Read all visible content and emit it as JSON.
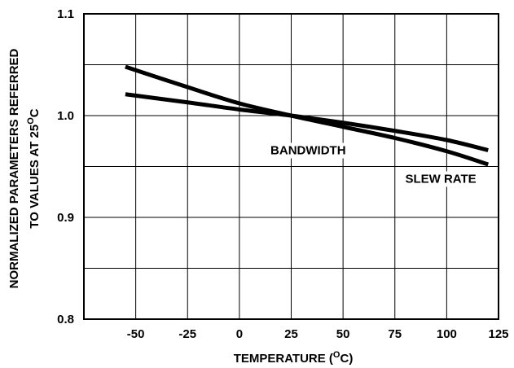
{
  "chart_data": {
    "type": "line",
    "title": "",
    "xlabel": "TEMPERATURE (",
    "xlabel_sup": "O",
    "xlabel_end": "C)",
    "ylabel_line1": "NORMALIZED PARAMETERS REFERRED",
    "ylabel_line2": "TO VALUES AT 25",
    "ylabel_sup": "O",
    "ylabel_end": "C",
    "xlim": [
      -75,
      125
    ],
    "ylim": [
      0.8,
      1.1
    ],
    "x_ticks": [
      "-50",
      "-25",
      "0",
      "25",
      "50",
      "75",
      "100",
      "125"
    ],
    "x_tick_values": [
      -50,
      -25,
      0,
      25,
      50,
      75,
      100,
      125
    ],
    "y_ticks": [
      "0.8",
      "0.9",
      "1.0",
      "1.1"
    ],
    "y_tick_values": [
      0.8,
      0.9,
      1.0,
      1.1
    ],
    "y_grid_values": [
      0.8,
      0.85,
      0.9,
      0.95,
      1.0,
      1.05,
      1.1
    ],
    "grid": true,
    "series": [
      {
        "name": "SLEW RATE",
        "x": [
          -55,
          -25,
          0,
          25,
          50,
          75,
          100,
          120
        ],
        "y": [
          1.048,
          1.028,
          1.012,
          1.0,
          0.989,
          0.978,
          0.965,
          0.952
        ]
      },
      {
        "name": "BANDWIDTH",
        "x": [
          -55,
          -25,
          0,
          25,
          50,
          75,
          100,
          120
        ],
        "y": [
          1.021,
          1.013,
          1.006,
          1.0,
          0.993,
          0.985,
          0.976,
          0.966
        ]
      }
    ],
    "annotations": [
      {
        "text": "BANDWIDTH",
        "x": 15,
        "y": 0.962
      },
      {
        "text": "SLEW RATE",
        "x": 80,
        "y": 0.934
      }
    ]
  }
}
